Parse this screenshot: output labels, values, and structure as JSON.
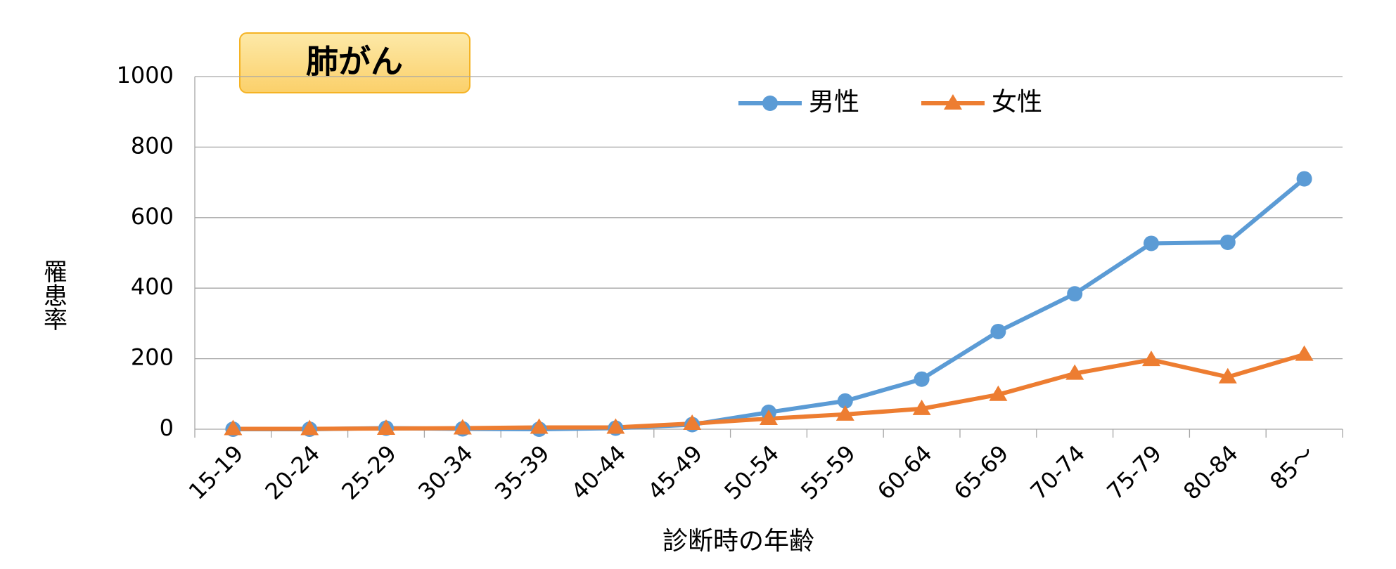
{
  "chart_data": {
    "type": "line",
    "title": "肺がん",
    "ylabel": "罹患率",
    "xlabel": "診断時の年齢",
    "categories": [
      "15-19",
      "20-24",
      "25-29",
      "30-34",
      "35-39",
      "40-44",
      "45-49",
      "50-54",
      "55-59",
      "60-64",
      "65-69",
      "70-74",
      "75-79",
      "80-84",
      "85〜"
    ],
    "series": [
      {
        "name": "男性",
        "color": "#5b9bd5",
        "marker": "circle",
        "values": [
          0,
          0,
          3,
          1,
          0,
          3,
          13,
          48,
          80,
          142,
          277,
          384,
          527,
          530,
          710
        ]
      },
      {
        "name": "女性",
        "color": "#ed7d31",
        "marker": "triangle",
        "values": [
          1,
          1,
          2,
          3,
          5,
          5,
          16,
          30,
          42,
          58,
          98,
          158,
          197,
          148,
          212
        ]
      }
    ],
    "ylim": [
      0,
      1000
    ],
    "yticks": [
      0,
      200,
      400,
      600,
      800,
      1000
    ],
    "grid": true
  }
}
